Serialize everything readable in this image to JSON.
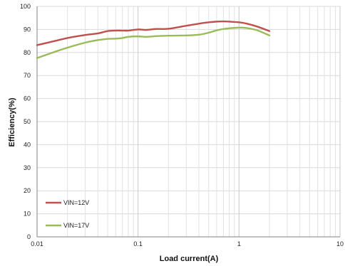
{
  "chart_data": {
    "type": "line",
    "title": "",
    "xlabel": "Load current(A)",
    "ylabel": "Efficiency(%)",
    "xscale": "log",
    "xlim": [
      0.01,
      10
    ],
    "ylim": [
      0,
      100
    ],
    "xticks": [
      0.01,
      0.1,
      1,
      10
    ],
    "xtick_labels": [
      "0.01",
      "0.1",
      "1",
      "10"
    ],
    "yticks": [
      0,
      10,
      20,
      30,
      40,
      50,
      60,
      70,
      80,
      90,
      100
    ],
    "grid": true,
    "legend_position": "bottom-left",
    "series": [
      {
        "name": "VIN=12V",
        "color": "#c0504d",
        "x": [
          0.01,
          0.015,
          0.02,
          0.03,
          0.04,
          0.05,
          0.06,
          0.07,
          0.08,
          0.1,
          0.12,
          0.15,
          0.2,
          0.3,
          0.4,
          0.5,
          0.6,
          0.7,
          0.8,
          1.0,
          1.2,
          1.5,
          2.0
        ],
        "y": [
          83.2,
          85.0,
          86.3,
          87.6,
          88.3,
          89.3,
          89.5,
          89.5,
          89.5,
          90.0,
          89.8,
          90.2,
          90.3,
          91.6,
          92.5,
          93.1,
          93.4,
          93.5,
          93.4,
          93.1,
          92.5,
          91.3,
          89.3
        ]
      },
      {
        "name": "VIN=17V",
        "color": "#9bbb59",
        "x": [
          0.01,
          0.015,
          0.02,
          0.03,
          0.04,
          0.05,
          0.06,
          0.07,
          0.08,
          0.1,
          0.12,
          0.15,
          0.2,
          0.3,
          0.4,
          0.5,
          0.6,
          0.7,
          0.8,
          1.0,
          1.2,
          1.5,
          2.0
        ],
        "y": [
          77.6,
          80.3,
          82.1,
          84.3,
          85.4,
          85.9,
          86.0,
          86.3,
          86.8,
          87.0,
          86.8,
          87.1,
          87.3,
          87.4,
          87.7,
          88.6,
          89.6,
          90.2,
          90.5,
          90.8,
          90.6,
          89.7,
          87.4
        ]
      }
    ]
  }
}
